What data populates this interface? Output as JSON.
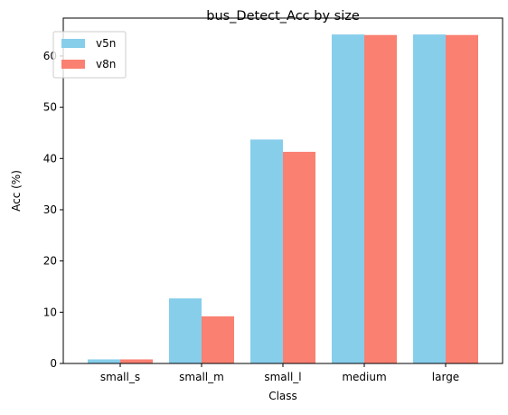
{
  "chart_data": {
    "type": "bar",
    "title": "bus_Detect_Acc by size",
    "xlabel": "Class",
    "ylabel": "Acc (%)",
    "categories": [
      "small_s",
      "small_m",
      "small_l",
      "medium",
      "large"
    ],
    "series": [
      {
        "name": "v5n",
        "color": "#87CEEB",
        "values": [
          0.8,
          12.7,
          43.7,
          64.2,
          64.2
        ]
      },
      {
        "name": "v8n",
        "color": "#FA8072",
        "values": [
          0.8,
          9.2,
          41.3,
          64.1,
          64.1
        ]
      }
    ],
    "yticks": [
      0,
      10,
      20,
      30,
      40,
      50,
      60
    ],
    "ylim": [
      0,
      67.4
    ],
    "legend_position": "top-left",
    "grid": false
  }
}
